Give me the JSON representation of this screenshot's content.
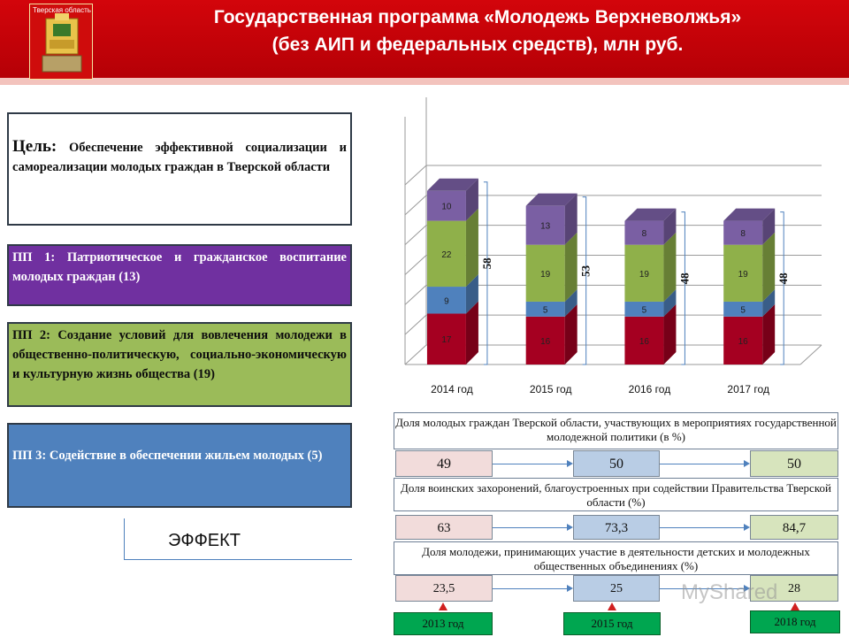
{
  "header": {
    "coat_label": "Тверская область",
    "title_line1": "Государственная программа «Молодежь Верхневолжья»",
    "title_line2": "(без АИП и федеральных средств), млн руб."
  },
  "left": {
    "goal_key": "Цель:",
    "goal_text": "Обеспечение эффективной социализации и самореализации молодых граждан в Тверской области",
    "pp1": "ПП 1: Патриотическое и гражданское воспитание молодых граждан (13)",
    "pp2": "ПП 2: Создание условий для вовлечения молодежи в общественно-политическую, социально-экономическую и культурную жизнь общества (19)",
    "pp3": "ПП 3: Содействие в обеспечении жильем молодых (5)",
    "effect": "ЭФФЕКТ"
  },
  "chart_data": {
    "type": "bar",
    "stacked": true,
    "categories": [
      "2014 год",
      "2015 год",
      "2016 год",
      "2017 год"
    ],
    "series": [
      {
        "values": [
          17,
          16,
          16,
          16
        ],
        "color": "#a50021"
      },
      {
        "values": [
          9,
          5,
          5,
          5
        ],
        "color": "#4f81bd"
      },
      {
        "values": [
          22,
          19,
          19,
          19
        ],
        "color": "#8fb04a"
      },
      {
        "values": [
          10,
          13,
          8,
          8
        ],
        "color": "#7a5fa3"
      }
    ],
    "totals": [
      "58",
      "53",
      "48",
      "48"
    ],
    "ylim": [
      0,
      60
    ],
    "grid": true
  },
  "indicators": [
    {
      "title": "Доля молодых граждан Тверской области, участвующих в мероприятиях государственной молодежной политики (в %)",
      "v2013": "49",
      "v2015": "50",
      "v2018": "50"
    },
    {
      "title": "Доля воинских захоронений, благоустроенных при содействии Правительства Тверской области (%)",
      "v2013": "63",
      "v2015": "73,3",
      "v2018": "84,7"
    },
    {
      "title": "Доля молодежи, принимающих участие в деятельности детских и молодежных общественных объединениях (%)",
      "v2013": "23,5",
      "v2015": "25",
      "v2018": "28"
    }
  ],
  "years": [
    "2013 год",
    "2015 год",
    "2018 год"
  ],
  "watermark": "MyShared"
}
